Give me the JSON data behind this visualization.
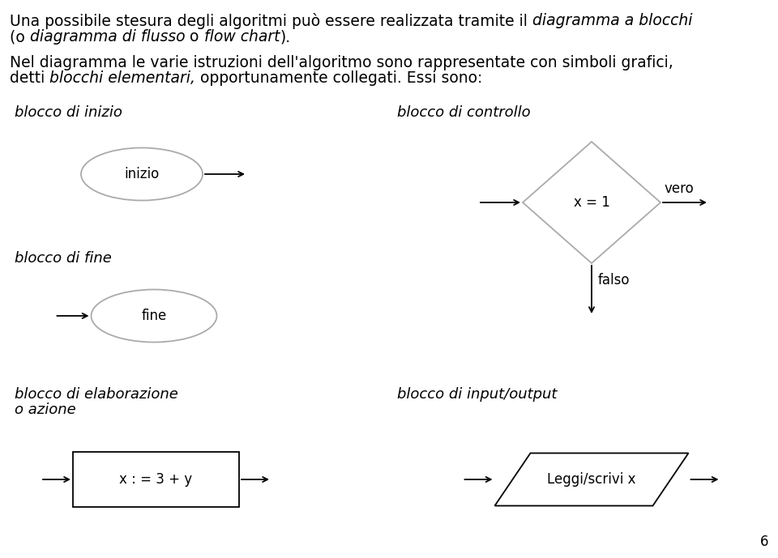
{
  "bg_color": "#ffffff",
  "page_number": "6",
  "labels": {
    "blocco_inizio": "blocco di inizio",
    "inizio": "inizio",
    "blocco_fine": "blocco di fine",
    "fine": "fine",
    "blocco_elaborazione_1": "blocco di elaborazione",
    "blocco_elaborazione_2": "o azione",
    "elaborazione": "x : = 3 + y",
    "blocco_controllo": "blocco di controllo",
    "controllo": "x = 1",
    "vero": "vero",
    "falso": "falso",
    "blocco_io": "blocco di input/output",
    "io": "Leggi/scrivi x"
  },
  "text_lines": {
    "line1_pre": "Una possibile stesura degli algoritmi può essere realizzata tramite il ",
    "line1_italic": "diagramma a blocchi",
    "line2_pre1": "(o ",
    "line2_italic1": "diagramma di flusso",
    "line2_pre2": " o ",
    "line2_italic2": "flow chart",
    "line2_post": ").",
    "line3": "Nel diagramma le varie istruzioni dell'algoritmo sono rappresentate con simboli grafici,",
    "line4_pre": "detti ",
    "line4_italic": "blocchi elementari,",
    "line4_post": " opportunamente collegati. Essi sono:"
  },
  "fontsize_text": 13.5,
  "fontsize_label": 13,
  "fontsize_shape": 12,
  "lw": 1.3
}
